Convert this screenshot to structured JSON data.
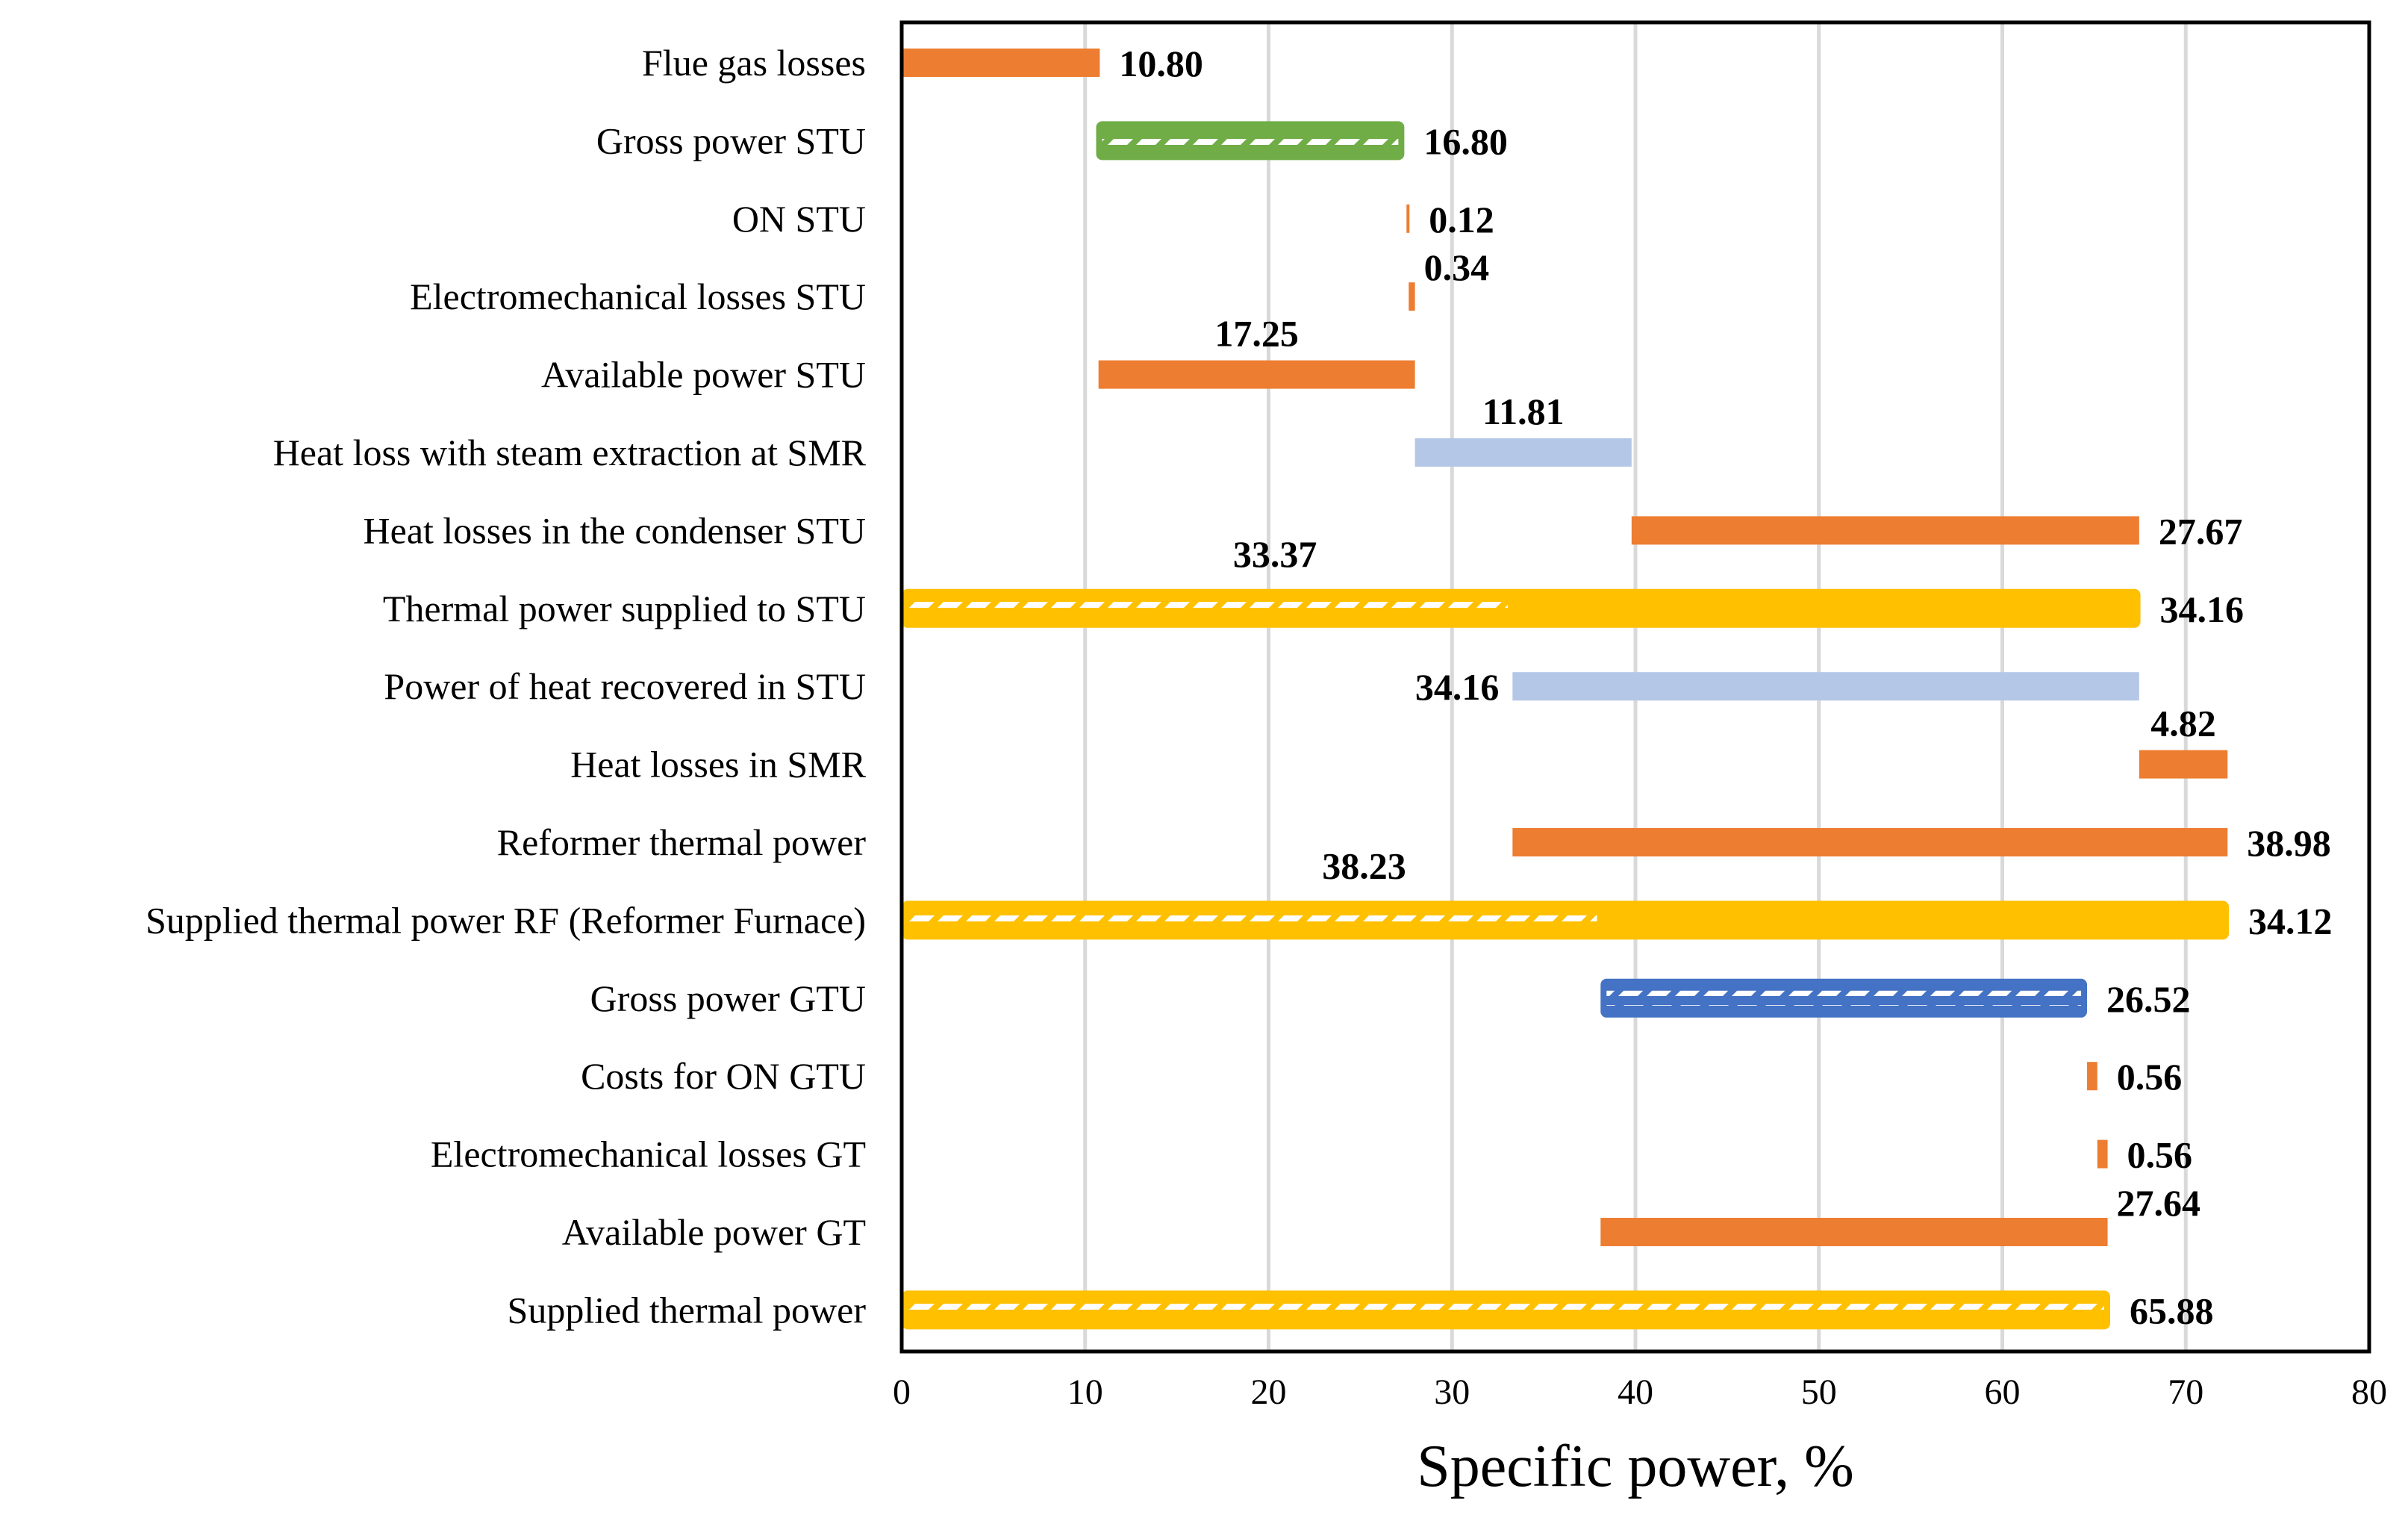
{
  "chart_data": {
    "type": "bar",
    "orientation": "horizontal",
    "style": "waterfall",
    "xlabel": "Specific power, %",
    "xlim": [
      0,
      80
    ],
    "xticks": [
      0,
      10,
      20,
      30,
      40,
      50,
      60,
      70,
      80
    ],
    "grid": "vertical",
    "legend": "none",
    "colors": {
      "loss": "#ED7D31",
      "recovered": "#B4C7E7",
      "supplied": "#FFC000",
      "gross_gtu": "#4472C4",
      "gross_stu": "#70AD47"
    },
    "categories": [
      "Flue gas losses",
      "Gross power STU",
      "ON STU",
      "Electromechanical losses STU",
      "Available power STU",
      "Heat loss with steam extraction at SMR",
      "Heat losses in the condenser STU",
      "Thermal power supplied to STU",
      "Power of heat recovered in STU",
      "Heat losses in SMR",
      "Reformer thermal power",
      "Supplied thermal power RF (Reformer Furnace)",
      "Gross power GTU",
      "Costs for ON GTU",
      "Electromechanical losses GT",
      "Available power GT",
      "Supplied thermal power"
    ],
    "bars": [
      {
        "category": "Flue gas losses",
        "start": 0,
        "end": 10.8,
        "color": "loss",
        "label": "10.80",
        "label_pos": "right"
      },
      {
        "category": "Gross power STU",
        "start": 10.6,
        "end": 27.4,
        "color": "gross_stu",
        "hatch_segment": [
          10.6,
          27.4
        ],
        "label": "16.80",
        "label_pos": "right"
      },
      {
        "category": "ON STU",
        "start": 27.52,
        "end": 27.64,
        "color": "loss",
        "label": "0.12",
        "label_pos": "right"
      },
      {
        "category": "Electromechanical losses STU",
        "start": 27.64,
        "end": 27.98,
        "color": "loss",
        "label": "0.34",
        "label_pos": "above-right"
      },
      {
        "category": "Available power STU",
        "start": 10.73,
        "end": 27.98,
        "color": "loss",
        "label": "17.25",
        "label_pos": "above"
      },
      {
        "category": "Heat loss with steam extraction at SMR",
        "start": 27.98,
        "end": 39.79,
        "color": "recovered",
        "label": "11.81",
        "label_pos": "above"
      },
      {
        "category": "Heat losses in the condenser STU",
        "start": 39.79,
        "end": 67.46,
        "color": "loss",
        "label": "27.67",
        "label_pos": "right"
      },
      {
        "category": "Thermal power supplied to STU",
        "start": 0,
        "end": 67.53,
        "color": "supplied",
        "hatch_segment": [
          0,
          33.37
        ],
        "label": "34.16",
        "label_pos": "right",
        "label2": "33.37",
        "label2_pos": "above-left"
      },
      {
        "category": "Power of heat recovered in STU",
        "start": 33.3,
        "end": 67.46,
        "color": "recovered",
        "label": "34.16",
        "label_pos": "left"
      },
      {
        "category": "Heat losses in SMR",
        "start": 67.46,
        "end": 72.28,
        "color": "loss",
        "label": "4.82",
        "label_pos": "above"
      },
      {
        "category": "Reformer thermal power",
        "start": 33.3,
        "end": 72.28,
        "color": "loss",
        "label": "38.98",
        "label_pos": "right"
      },
      {
        "category": "Supplied thermal power RF (Reformer Furnace)",
        "start": 0,
        "end": 72.35,
        "color": "supplied",
        "hatch_segment": [
          0,
          38.23
        ],
        "label": "34.12",
        "label_pos": "right",
        "label2": "38.23",
        "label2_pos": "above-left"
      },
      {
        "category": "Gross power GTU",
        "start": 38.1,
        "end": 64.62,
        "color": "gross_gtu",
        "hatch_segment": [
          38.1,
          64.62
        ],
        "label": "26.52",
        "label_pos": "right"
      },
      {
        "category": "Costs for ON GTU",
        "start": 64.62,
        "end": 65.18,
        "color": "loss",
        "label": "0.56",
        "label_pos": "right"
      },
      {
        "category": "Electromechanical losses GT",
        "start": 65.18,
        "end": 65.74,
        "color": "loss",
        "label": "0.56",
        "label_pos": "right"
      },
      {
        "category": "Available power GT",
        "start": 38.1,
        "end": 65.74,
        "color": "loss",
        "label": "27.64",
        "label_pos": "above-right"
      },
      {
        "category": "Supplied thermal power",
        "start": 0,
        "end": 65.88,
        "color": "supplied",
        "hatch_segment": [
          0,
          65.88
        ],
        "label": "65.88",
        "label_pos": "right"
      }
    ]
  }
}
